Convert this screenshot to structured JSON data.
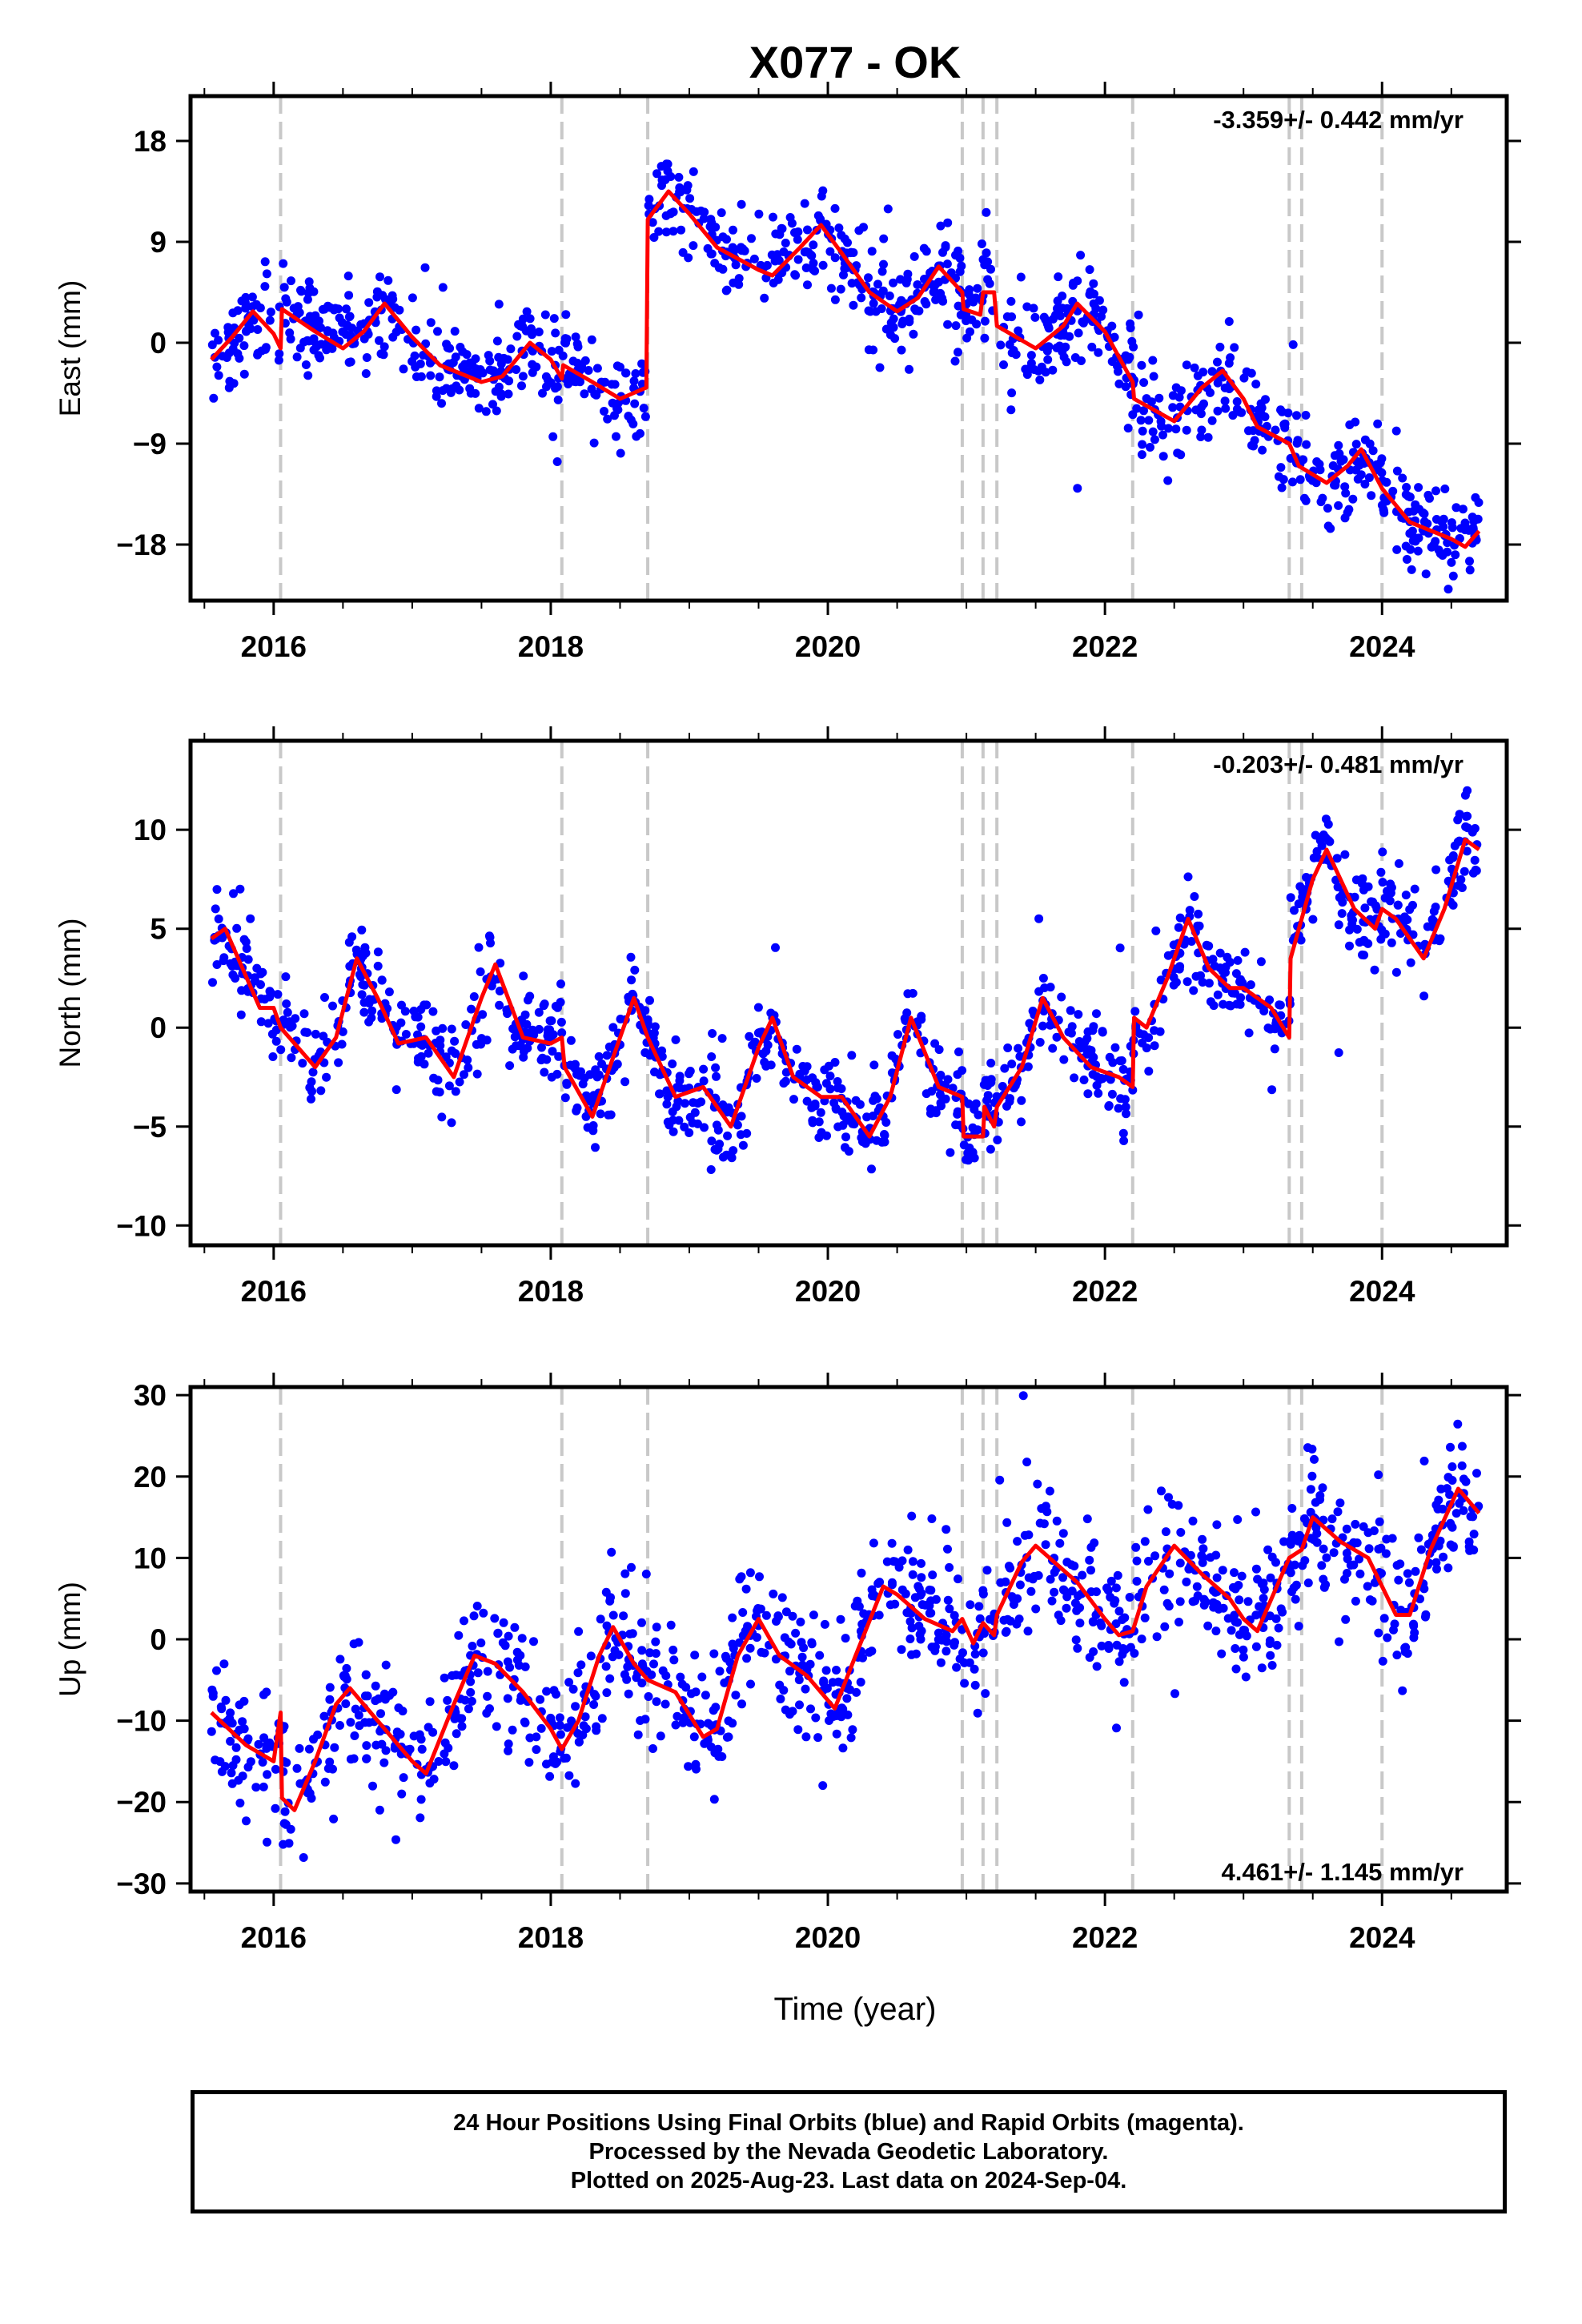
{
  "title": "X077 - OK",
  "xlabel": "Time (year)",
  "caption": [
    "24 Hour Positions Using Final Orbits (blue) and Rapid Orbits (magenta).",
    "Processed by the Nevada Geodetic Laboratory.",
    "Plotted on 2025-Aug-23. Last data on 2024-Sep-04."
  ],
  "colors": {
    "points": "#0000ff",
    "trend": "#ff0000",
    "equipment_lines": "#c8c8c8",
    "frame": "#000000"
  },
  "chart_data": [
    {
      "type": "scatter",
      "panel": "east",
      "ylabel": "East (mm)",
      "rate_label": "-3.359+/- 0.442 mm/yr",
      "xlim": [
        2015.4,
        2024.9
      ],
      "ylim": [
        -23,
        22
      ],
      "x_ticks": [
        2016,
        2018,
        2020,
        2022,
        2024
      ],
      "y_ticks": [
        18,
        9,
        0,
        -9,
        -18
      ],
      "y_tick_labels": [
        "18",
        "9",
        "0",
        "−9",
        "−18"
      ],
      "steps": [
        2016.05,
        2018.08,
        2018.7,
        2020.97,
        2021.12,
        2021.22,
        2022.2,
        2023.33,
        2023.42,
        2024.0
      ],
      "trend": [
        [
          2015.55,
          -1.5
        ],
        [
          2015.7,
          0.5
        ],
        [
          2015.85,
          2.8
        ],
        [
          2016.0,
          0.8
        ],
        [
          2016.05,
          -0.5
        ],
        [
          2016.06,
          3.0
        ],
        [
          2016.3,
          1.0
        ],
        [
          2016.5,
          -0.5
        ],
        [
          2016.65,
          1.0
        ],
        [
          2016.8,
          3.5
        ],
        [
          2017.0,
          0.5
        ],
        [
          2017.2,
          -2.0
        ],
        [
          2017.5,
          -3.5
        ],
        [
          2017.65,
          -3.0
        ],
        [
          2017.85,
          0.0
        ],
        [
          2018.0,
          -1.5
        ],
        [
          2018.08,
          -3.2
        ],
        [
          2018.09,
          -2.0
        ],
        [
          2018.3,
          -3.5
        ],
        [
          2018.5,
          -5.0
        ],
        [
          2018.69,
          -4.0
        ],
        [
          2018.7,
          11.0
        ],
        [
          2018.85,
          13.5
        ],
        [
          2019.0,
          11.5
        ],
        [
          2019.2,
          8.5
        ],
        [
          2019.5,
          6.5
        ],
        [
          2019.6,
          6.0
        ],
        [
          2019.8,
          8.5
        ],
        [
          2019.95,
          10.5
        ],
        [
          2020.1,
          8.0
        ],
        [
          2020.3,
          4.5
        ],
        [
          2020.5,
          2.8
        ],
        [
          2020.65,
          4.0
        ],
        [
          2020.8,
          6.8
        ],
        [
          2020.97,
          4.5
        ],
        [
          2020.98,
          3.0
        ],
        [
          2021.1,
          2.5
        ],
        [
          2021.12,
          4.5
        ],
        [
          2021.2,
          4.5
        ],
        [
          2021.22,
          1.5
        ],
        [
          2021.5,
          -0.5
        ],
        [
          2021.7,
          1.5
        ],
        [
          2021.8,
          3.5
        ],
        [
          2022.0,
          1.0
        ],
        [
          2022.2,
          -3.5
        ],
        [
          2022.21,
          -5.0
        ],
        [
          2022.5,
          -7.0
        ],
        [
          2022.7,
          -4.0
        ],
        [
          2022.85,
          -2.5
        ],
        [
          2023.0,
          -5.0
        ],
        [
          2023.1,
          -7.5
        ],
        [
          2023.33,
          -9.0
        ],
        [
          2023.4,
          -11.0
        ],
        [
          2023.6,
          -12.5
        ],
        [
          2023.75,
          -11.0
        ],
        [
          2023.85,
          -9.5
        ],
        [
          2024.0,
          -13.0
        ],
        [
          2024.2,
          -16.0
        ],
        [
          2024.5,
          -17.5
        ],
        [
          2024.6,
          -18.2
        ],
        [
          2024.7,
          -16.8
        ]
      ]
    },
    {
      "type": "scatter",
      "panel": "north",
      "ylabel": "North (mm)",
      "rate_label": "-0.203+/- 0.481 mm/yr",
      "xlim": [
        2015.4,
        2024.9
      ],
      "ylim": [
        -11,
        14.5
      ],
      "x_ticks": [
        2016,
        2018,
        2020,
        2022,
        2024
      ],
      "y_ticks": [
        10,
        5,
        0,
        -5,
        -10
      ],
      "y_tick_labels": [
        "10",
        "5",
        "0",
        "−5",
        "−10"
      ],
      "steps": [
        2016.05,
        2018.08,
        2018.7,
        2020.97,
        2021.12,
        2021.22,
        2022.2,
        2023.33,
        2023.42,
        2024.0
      ],
      "trend": [
        [
          2015.55,
          4.5
        ],
        [
          2015.65,
          5.0
        ],
        [
          2015.9,
          1.0
        ],
        [
          2016.0,
          1.0
        ],
        [
          2016.05,
          0.0
        ],
        [
          2016.3,
          -2.0
        ],
        [
          2016.45,
          -0.5
        ],
        [
          2016.6,
          3.5
        ],
        [
          2016.75,
          1.5
        ],
        [
          2016.9,
          -0.8
        ],
        [
          2017.1,
          -0.5
        ],
        [
          2017.3,
          -2.5
        ],
        [
          2017.5,
          1.5
        ],
        [
          2017.6,
          3.2
        ],
        [
          2017.8,
          -0.5
        ],
        [
          2018.0,
          -0.8
        ],
        [
          2018.08,
          -0.5
        ],
        [
          2018.1,
          -2.0
        ],
        [
          2018.3,
          -4.5
        ],
        [
          2018.5,
          -0.5
        ],
        [
          2018.6,
          1.5
        ],
        [
          2018.7,
          -0.5
        ],
        [
          2018.9,
          -3.5
        ],
        [
          2019.1,
          -3.0
        ],
        [
          2019.3,
          -5.0
        ],
        [
          2019.5,
          -1.0
        ],
        [
          2019.6,
          0.5
        ],
        [
          2019.75,
          -2.5
        ],
        [
          2019.95,
          -3.5
        ],
        [
          2020.1,
          -3.5
        ],
        [
          2020.3,
          -5.5
        ],
        [
          2020.45,
          -3.5
        ],
        [
          2020.6,
          0.5
        ],
        [
          2020.8,
          -3.0
        ],
        [
          2020.97,
          -3.5
        ],
        [
          2020.98,
          -5.5
        ],
        [
          2021.12,
          -5.5
        ],
        [
          2021.13,
          -4.0
        ],
        [
          2021.2,
          -5.0
        ],
        [
          2021.22,
          -4.0
        ],
        [
          2021.4,
          -2.0
        ],
        [
          2021.55,
          1.5
        ],
        [
          2021.7,
          -0.5
        ],
        [
          2021.9,
          -2.0
        ],
        [
          2022.1,
          -2.5
        ],
        [
          2022.2,
          -3.0
        ],
        [
          2022.21,
          0.5
        ],
        [
          2022.3,
          0.0
        ],
        [
          2022.45,
          2.5
        ],
        [
          2022.6,
          5.5
        ],
        [
          2022.75,
          3.0
        ],
        [
          2022.9,
          2.0
        ],
        [
          2023.0,
          2.0
        ],
        [
          2023.2,
          1.0
        ],
        [
          2023.33,
          -0.5
        ],
        [
          2023.34,
          3.5
        ],
        [
          2023.5,
          7.5
        ],
        [
          2023.6,
          9.0
        ],
        [
          2023.8,
          6.0
        ],
        [
          2023.95,
          5.0
        ],
        [
          2024.0,
          6.0
        ],
        [
          2024.1,
          5.5
        ],
        [
          2024.3,
          3.5
        ],
        [
          2024.45,
          6.0
        ],
        [
          2024.6,
          9.5
        ],
        [
          2024.7,
          9.0
        ]
      ]
    },
    {
      "type": "scatter",
      "panel": "up",
      "ylabel": "Up (mm)",
      "rate_label": "4.461+/- 1.145 mm/yr",
      "xlim": [
        2015.4,
        2024.9
      ],
      "ylim": [
        -31,
        31
      ],
      "x_ticks": [
        2016,
        2018,
        2020,
        2022,
        2024
      ],
      "y_ticks": [
        30,
        20,
        10,
        0,
        -10,
        -20,
        -30
      ],
      "y_tick_labels": [
        "30",
        "20",
        "10",
        "0",
        "−10",
        "−20",
        "−30"
      ],
      "steps": [
        2016.05,
        2018.08,
        2018.7,
        2020.97,
        2021.12,
        2021.22,
        2022.2,
        2023.33,
        2023.42,
        2024.0
      ],
      "trend": [
        [
          2015.55,
          -9.0
        ],
        [
          2015.8,
          -13.0
        ],
        [
          2016.0,
          -15.0
        ],
        [
          2016.05,
          -9.0
        ],
        [
          2016.06,
          -19.5
        ],
        [
          2016.15,
          -21.0
        ],
        [
          2016.3,
          -15.0
        ],
        [
          2016.45,
          -8.0
        ],
        [
          2016.55,
          -6.0
        ],
        [
          2016.75,
          -10.0
        ],
        [
          2017.0,
          -15.0
        ],
        [
          2017.1,
          -16.5
        ],
        [
          2017.3,
          -8.0
        ],
        [
          2017.45,
          -2.0
        ],
        [
          2017.6,
          -3.0
        ],
        [
          2017.8,
          -6.5
        ],
        [
          2018.0,
          -11.0
        ],
        [
          2018.08,
          -13.5
        ],
        [
          2018.2,
          -10.0
        ],
        [
          2018.35,
          -2.0
        ],
        [
          2018.45,
          1.5
        ],
        [
          2018.6,
          -3.0
        ],
        [
          2018.7,
          -5.0
        ],
        [
          2018.9,
          -6.5
        ],
        [
          2019.1,
          -12.0
        ],
        [
          2019.2,
          -11.0
        ],
        [
          2019.35,
          -2.0
        ],
        [
          2019.5,
          2.5
        ],
        [
          2019.65,
          -2.0
        ],
        [
          2019.85,
          -4.5
        ],
        [
          2020.05,
          -8.5
        ],
        [
          2020.2,
          -2.0
        ],
        [
          2020.4,
          6.5
        ],
        [
          2020.5,
          5.5
        ],
        [
          2020.7,
          2.5
        ],
        [
          2020.9,
          1.0
        ],
        [
          2020.97,
          2.5
        ],
        [
          2021.05,
          -0.5
        ],
        [
          2021.12,
          2.0
        ],
        [
          2021.2,
          0.5
        ],
        [
          2021.22,
          3.0
        ],
        [
          2021.4,
          9.5
        ],
        [
          2021.5,
          11.5
        ],
        [
          2021.8,
          7.0
        ],
        [
          2022.0,
          2.5
        ],
        [
          2022.1,
          0.5
        ],
        [
          2022.2,
          1.0
        ],
        [
          2022.3,
          6.5
        ],
        [
          2022.5,
          11.5
        ],
        [
          2022.7,
          8.0
        ],
        [
          2022.9,
          5.0
        ],
        [
          2023.0,
          2.5
        ],
        [
          2023.1,
          1.0
        ],
        [
          2023.33,
          10.0
        ],
        [
          2023.42,
          11.0
        ],
        [
          2023.5,
          15.0
        ],
        [
          2023.7,
          12.0
        ],
        [
          2023.9,
          10.0
        ],
        [
          2024.0,
          6.5
        ],
        [
          2024.1,
          3.0
        ],
        [
          2024.2,
          3.0
        ],
        [
          2024.35,
          11.0
        ],
        [
          2024.55,
          18.5
        ],
        [
          2024.7,
          15.5
        ]
      ]
    }
  ]
}
